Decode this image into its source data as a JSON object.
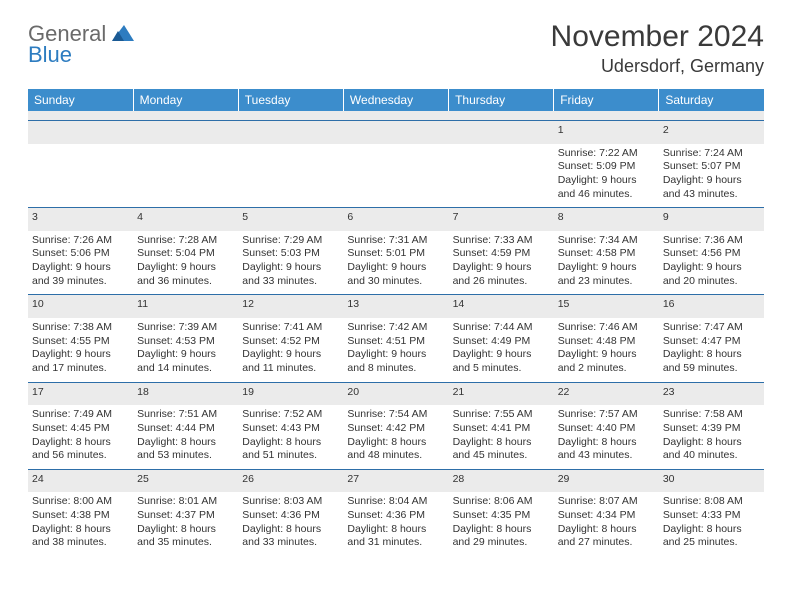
{
  "logo": {
    "line1": "General",
    "line2": "Blue"
  },
  "header": {
    "month": "November 2024",
    "location": "Udersdorf, Germany"
  },
  "colors": {
    "header_bg": "#3c8dcc",
    "header_text": "#ffffff",
    "daynum_bg": "#ebebeb",
    "border": "#2d6ea8",
    "logo_gray": "#6a6a6a",
    "logo_blue": "#2d7cc0",
    "text": "#333333"
  },
  "calendar": {
    "type": "table",
    "columns": [
      "Sunday",
      "Monday",
      "Tuesday",
      "Wednesday",
      "Thursday",
      "Friday",
      "Saturday"
    ],
    "column_fontsize": 12,
    "cell_fontsize": 10.5,
    "weeks": [
      [
        null,
        null,
        null,
        null,
        null,
        {
          "day": "1",
          "sunrise": "Sunrise: 7:22 AM",
          "sunset": "Sunset: 5:09 PM",
          "daylight": "Daylight: 9 hours and 46 minutes."
        },
        {
          "day": "2",
          "sunrise": "Sunrise: 7:24 AM",
          "sunset": "Sunset: 5:07 PM",
          "daylight": "Daylight: 9 hours and 43 minutes."
        }
      ],
      [
        {
          "day": "3",
          "sunrise": "Sunrise: 7:26 AM",
          "sunset": "Sunset: 5:06 PM",
          "daylight": "Daylight: 9 hours and 39 minutes."
        },
        {
          "day": "4",
          "sunrise": "Sunrise: 7:28 AM",
          "sunset": "Sunset: 5:04 PM",
          "daylight": "Daylight: 9 hours and 36 minutes."
        },
        {
          "day": "5",
          "sunrise": "Sunrise: 7:29 AM",
          "sunset": "Sunset: 5:03 PM",
          "daylight": "Daylight: 9 hours and 33 minutes."
        },
        {
          "day": "6",
          "sunrise": "Sunrise: 7:31 AM",
          "sunset": "Sunset: 5:01 PM",
          "daylight": "Daylight: 9 hours and 30 minutes."
        },
        {
          "day": "7",
          "sunrise": "Sunrise: 7:33 AM",
          "sunset": "Sunset: 4:59 PM",
          "daylight": "Daylight: 9 hours and 26 minutes."
        },
        {
          "day": "8",
          "sunrise": "Sunrise: 7:34 AM",
          "sunset": "Sunset: 4:58 PM",
          "daylight": "Daylight: 9 hours and 23 minutes."
        },
        {
          "day": "9",
          "sunrise": "Sunrise: 7:36 AM",
          "sunset": "Sunset: 4:56 PM",
          "daylight": "Daylight: 9 hours and 20 minutes."
        }
      ],
      [
        {
          "day": "10",
          "sunrise": "Sunrise: 7:38 AM",
          "sunset": "Sunset: 4:55 PM",
          "daylight": "Daylight: 9 hours and 17 minutes."
        },
        {
          "day": "11",
          "sunrise": "Sunrise: 7:39 AM",
          "sunset": "Sunset: 4:53 PM",
          "daylight": "Daylight: 9 hours and 14 minutes."
        },
        {
          "day": "12",
          "sunrise": "Sunrise: 7:41 AM",
          "sunset": "Sunset: 4:52 PM",
          "daylight": "Daylight: 9 hours and 11 minutes."
        },
        {
          "day": "13",
          "sunrise": "Sunrise: 7:42 AM",
          "sunset": "Sunset: 4:51 PM",
          "daylight": "Daylight: 9 hours and 8 minutes."
        },
        {
          "day": "14",
          "sunrise": "Sunrise: 7:44 AM",
          "sunset": "Sunset: 4:49 PM",
          "daylight": "Daylight: 9 hours and 5 minutes."
        },
        {
          "day": "15",
          "sunrise": "Sunrise: 7:46 AM",
          "sunset": "Sunset: 4:48 PM",
          "daylight": "Daylight: 9 hours and 2 minutes."
        },
        {
          "day": "16",
          "sunrise": "Sunrise: 7:47 AM",
          "sunset": "Sunset: 4:47 PM",
          "daylight": "Daylight: 8 hours and 59 minutes."
        }
      ],
      [
        {
          "day": "17",
          "sunrise": "Sunrise: 7:49 AM",
          "sunset": "Sunset: 4:45 PM",
          "daylight": "Daylight: 8 hours and 56 minutes."
        },
        {
          "day": "18",
          "sunrise": "Sunrise: 7:51 AM",
          "sunset": "Sunset: 4:44 PM",
          "daylight": "Daylight: 8 hours and 53 minutes."
        },
        {
          "day": "19",
          "sunrise": "Sunrise: 7:52 AM",
          "sunset": "Sunset: 4:43 PM",
          "daylight": "Daylight: 8 hours and 51 minutes."
        },
        {
          "day": "20",
          "sunrise": "Sunrise: 7:54 AM",
          "sunset": "Sunset: 4:42 PM",
          "daylight": "Daylight: 8 hours and 48 minutes."
        },
        {
          "day": "21",
          "sunrise": "Sunrise: 7:55 AM",
          "sunset": "Sunset: 4:41 PM",
          "daylight": "Daylight: 8 hours and 45 minutes."
        },
        {
          "day": "22",
          "sunrise": "Sunrise: 7:57 AM",
          "sunset": "Sunset: 4:40 PM",
          "daylight": "Daylight: 8 hours and 43 minutes."
        },
        {
          "day": "23",
          "sunrise": "Sunrise: 7:58 AM",
          "sunset": "Sunset: 4:39 PM",
          "daylight": "Daylight: 8 hours and 40 minutes."
        }
      ],
      [
        {
          "day": "24",
          "sunrise": "Sunrise: 8:00 AM",
          "sunset": "Sunset: 4:38 PM",
          "daylight": "Daylight: 8 hours and 38 minutes."
        },
        {
          "day": "25",
          "sunrise": "Sunrise: 8:01 AM",
          "sunset": "Sunset: 4:37 PM",
          "daylight": "Daylight: 8 hours and 35 minutes."
        },
        {
          "day": "26",
          "sunrise": "Sunrise: 8:03 AM",
          "sunset": "Sunset: 4:36 PM",
          "daylight": "Daylight: 8 hours and 33 minutes."
        },
        {
          "day": "27",
          "sunrise": "Sunrise: 8:04 AM",
          "sunset": "Sunset: 4:36 PM",
          "daylight": "Daylight: 8 hours and 31 minutes."
        },
        {
          "day": "28",
          "sunrise": "Sunrise: 8:06 AM",
          "sunset": "Sunset: 4:35 PM",
          "daylight": "Daylight: 8 hours and 29 minutes."
        },
        {
          "day": "29",
          "sunrise": "Sunrise: 8:07 AM",
          "sunset": "Sunset: 4:34 PM",
          "daylight": "Daylight: 8 hours and 27 minutes."
        },
        {
          "day": "30",
          "sunrise": "Sunrise: 8:08 AM",
          "sunset": "Sunset: 4:33 PM",
          "daylight": "Daylight: 8 hours and 25 minutes."
        }
      ]
    ]
  }
}
